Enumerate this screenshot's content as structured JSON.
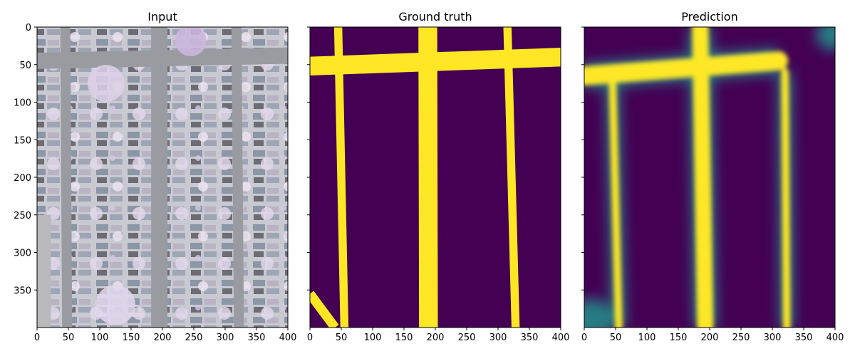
{
  "chart_data": [
    {
      "type": "heatmap",
      "title": "Input",
      "content": "aerial-photograph",
      "xlim": [
        0,
        400
      ],
      "ylim": [
        400,
        0
      ],
      "xticks": [
        "0",
        "50",
        "100",
        "150",
        "200",
        "250",
        "300",
        "350",
        "400"
      ],
      "yticks": [
        "0",
        "50",
        "100",
        "150",
        "200",
        "250",
        "300",
        "350"
      ]
    },
    {
      "type": "heatmap",
      "title": "Ground truth",
      "colormap": "viridis",
      "xlim": [
        0,
        400
      ],
      "ylim": [
        400,
        0
      ],
      "xticks": [
        "0",
        "50",
        "100",
        "150",
        "200",
        "250",
        "300",
        "350",
        "400"
      ],
      "road_segments": [
        {
          "from": [
            45,
            0
          ],
          "to": [
            55,
            400
          ],
          "width": 13
        },
        {
          "from": [
            188,
            0
          ],
          "to": [
            189,
            400
          ],
          "width": 30
        },
        {
          "from": [
            315,
            0
          ],
          "to": [
            328,
            400
          ],
          "width": 13
        },
        {
          "from": [
            0,
            52
          ],
          "to": [
            400,
            40
          ],
          "width": 30
        },
        {
          "from": [
            0,
            355
          ],
          "to": [
            40,
            400
          ],
          "width": 15
        }
      ]
    },
    {
      "type": "heatmap",
      "title": "Prediction",
      "colormap": "viridis",
      "xlim": [
        0,
        400
      ],
      "ylim": [
        400,
        0
      ],
      "xticks": [
        "0",
        "50",
        "100",
        "150",
        "200",
        "250",
        "300",
        "350",
        "400"
      ],
      "road_segments": [
        {
          "from": [
            45,
            70
          ],
          "to": [
            55,
            400
          ],
          "width": 12
        },
        {
          "from": [
            185,
            0
          ],
          "to": [
            193,
            400
          ],
          "width": 26
        },
        {
          "from": [
            320,
            60
          ],
          "to": [
            323,
            400
          ],
          "width": 12
        },
        {
          "from": [
            0,
            65
          ],
          "to": [
            310,
            45
          ],
          "width": 30
        }
      ]
    }
  ],
  "colors": {
    "viridis_low": "#440154",
    "viridis_high": "#fde725",
    "viridis_mid": "#21918c"
  }
}
